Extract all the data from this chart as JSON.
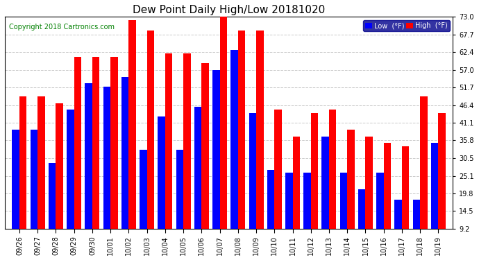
{
  "title": "Dew Point Daily High/Low 20181020",
  "copyright": "Copyright 2018 Cartronics.com",
  "dates": [
    "09/26",
    "09/27",
    "09/28",
    "09/29",
    "09/30",
    "10/01",
    "10/02",
    "10/03",
    "10/04",
    "10/05",
    "10/06",
    "10/07",
    "10/08",
    "10/09",
    "10/10",
    "10/11",
    "10/12",
    "10/13",
    "10/14",
    "10/15",
    "10/16",
    "10/17",
    "10/18",
    "10/19"
  ],
  "high": [
    49,
    49,
    47,
    61,
    61,
    61,
    72,
    69,
    62,
    62,
    59,
    74,
    69,
    69,
    45,
    37,
    44,
    45,
    39,
    37,
    35,
    34,
    49,
    44
  ],
  "low": [
    39,
    39,
    29,
    45,
    53,
    52,
    55,
    33,
    43,
    33,
    46,
    57,
    63,
    44,
    27,
    26,
    26,
    37,
    26,
    21,
    26,
    18,
    18,
    35
  ],
  "ylim_min": 9.2,
  "ylim_max": 73.0,
  "yticks": [
    9.2,
    14.5,
    19.8,
    25.1,
    30.5,
    35.8,
    41.1,
    46.4,
    51.7,
    57.0,
    62.4,
    67.7,
    73.0
  ],
  "high_color": "#FF0000",
  "low_color": "#0000FF",
  "bg_color": "#FFFFFF",
  "grid_color": "#C8C8C8",
  "bar_width": 0.4,
  "title_fontsize": 11,
  "tick_fontsize": 7,
  "copyright_fontsize": 7,
  "legend_fontsize": 7,
  "legend_label_low": "Low  (°F)",
  "legend_label_high": "High  (°F)"
}
